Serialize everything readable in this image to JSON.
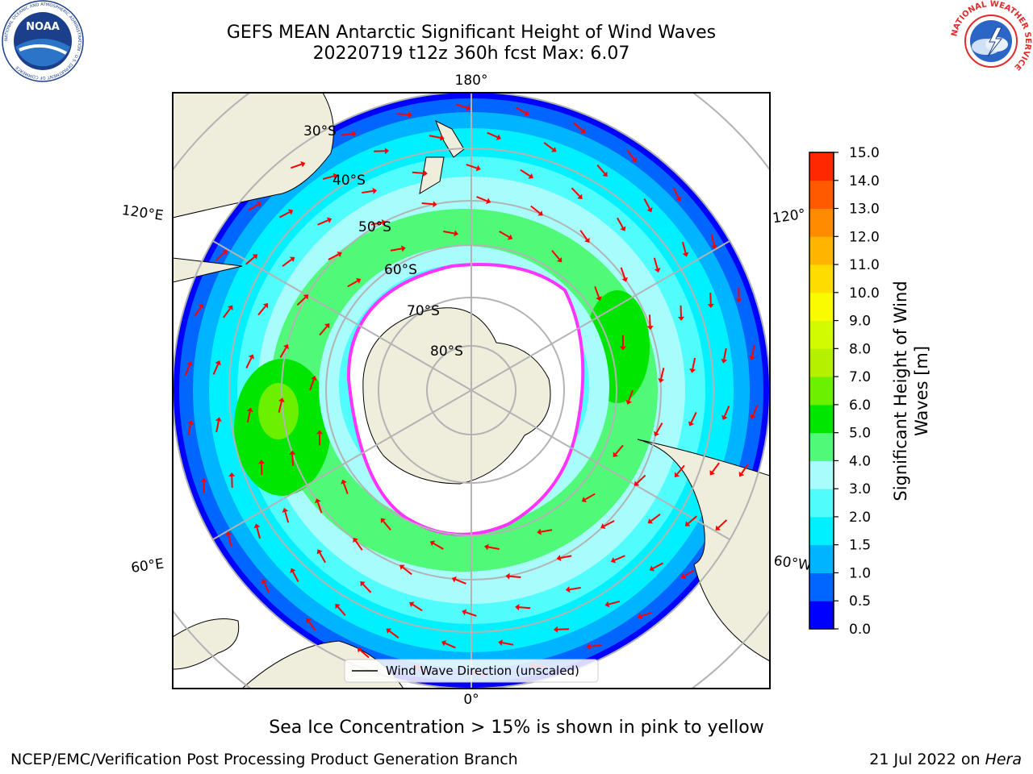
{
  "header": {
    "title_line1": "GEFS MEAN Antarctic Significant Height of Wind Waves",
    "title_line2": "20220719 t12z 360h fcst   Max: 6.07"
  },
  "logos": {
    "left": "NOAA",
    "left_ring_text": "NATIONAL OCEANIC AND ATMOSPHERIC ADMINISTRATION · U.S. DEPARTMENT OF COMMERCE",
    "right_ring_text": "NATIONAL WEATHER SERVICE"
  },
  "map": {
    "projection": "south-polar-stereographic",
    "lon_labels": {
      "top": "180°",
      "bottom": "0°",
      "left_upper": "120°E",
      "left_lower": "60°E",
      "right_upper": "120°",
      "right_lower": "60°W"
    },
    "lat_labels": [
      "30°S",
      "40°S",
      "50°S",
      "60°S",
      "70°S",
      "80°S"
    ],
    "legend_label": "Wind Wave Direction (unscaled)",
    "colors": {
      "land": "#efeddc",
      "ice": "#ffffff",
      "ice_edge": "#ff33ff",
      "arrow": "#ff0000",
      "grid": "#b3b3b3"
    }
  },
  "colorbar": {
    "label_line1": "Significant Height of Wind",
    "label_line2": "Waves [m]",
    "ticks": [
      "0.0",
      "0.5",
      "1.0",
      "1.5",
      "2.0",
      "3.0",
      "4.0",
      "5.0",
      "6.0",
      "7.0",
      "8.0",
      "9.0",
      "10.0",
      "11.0",
      "12.0",
      "13.0",
      "14.0",
      "15.0"
    ],
    "colors": [
      "#0000ff",
      "#0066ff",
      "#00b4ff",
      "#00f0ff",
      "#50fcfc",
      "#a8fcfc",
      "#50fa78",
      "#00e600",
      "#6bf000",
      "#b4f000",
      "#d2fa00",
      "#fafa00",
      "#ffdc00",
      "#ffb400",
      "#ff8c00",
      "#ff5a00",
      "#ff2800"
    ]
  },
  "footer": {
    "note": "Sea Ice Concentration > 15% is shown in pink to yellow",
    "credit": "NCEP/EMC/Verification Post Processing Product Generation Branch",
    "date": "21 Jul 2022 on",
    "machine": "Hera"
  }
}
